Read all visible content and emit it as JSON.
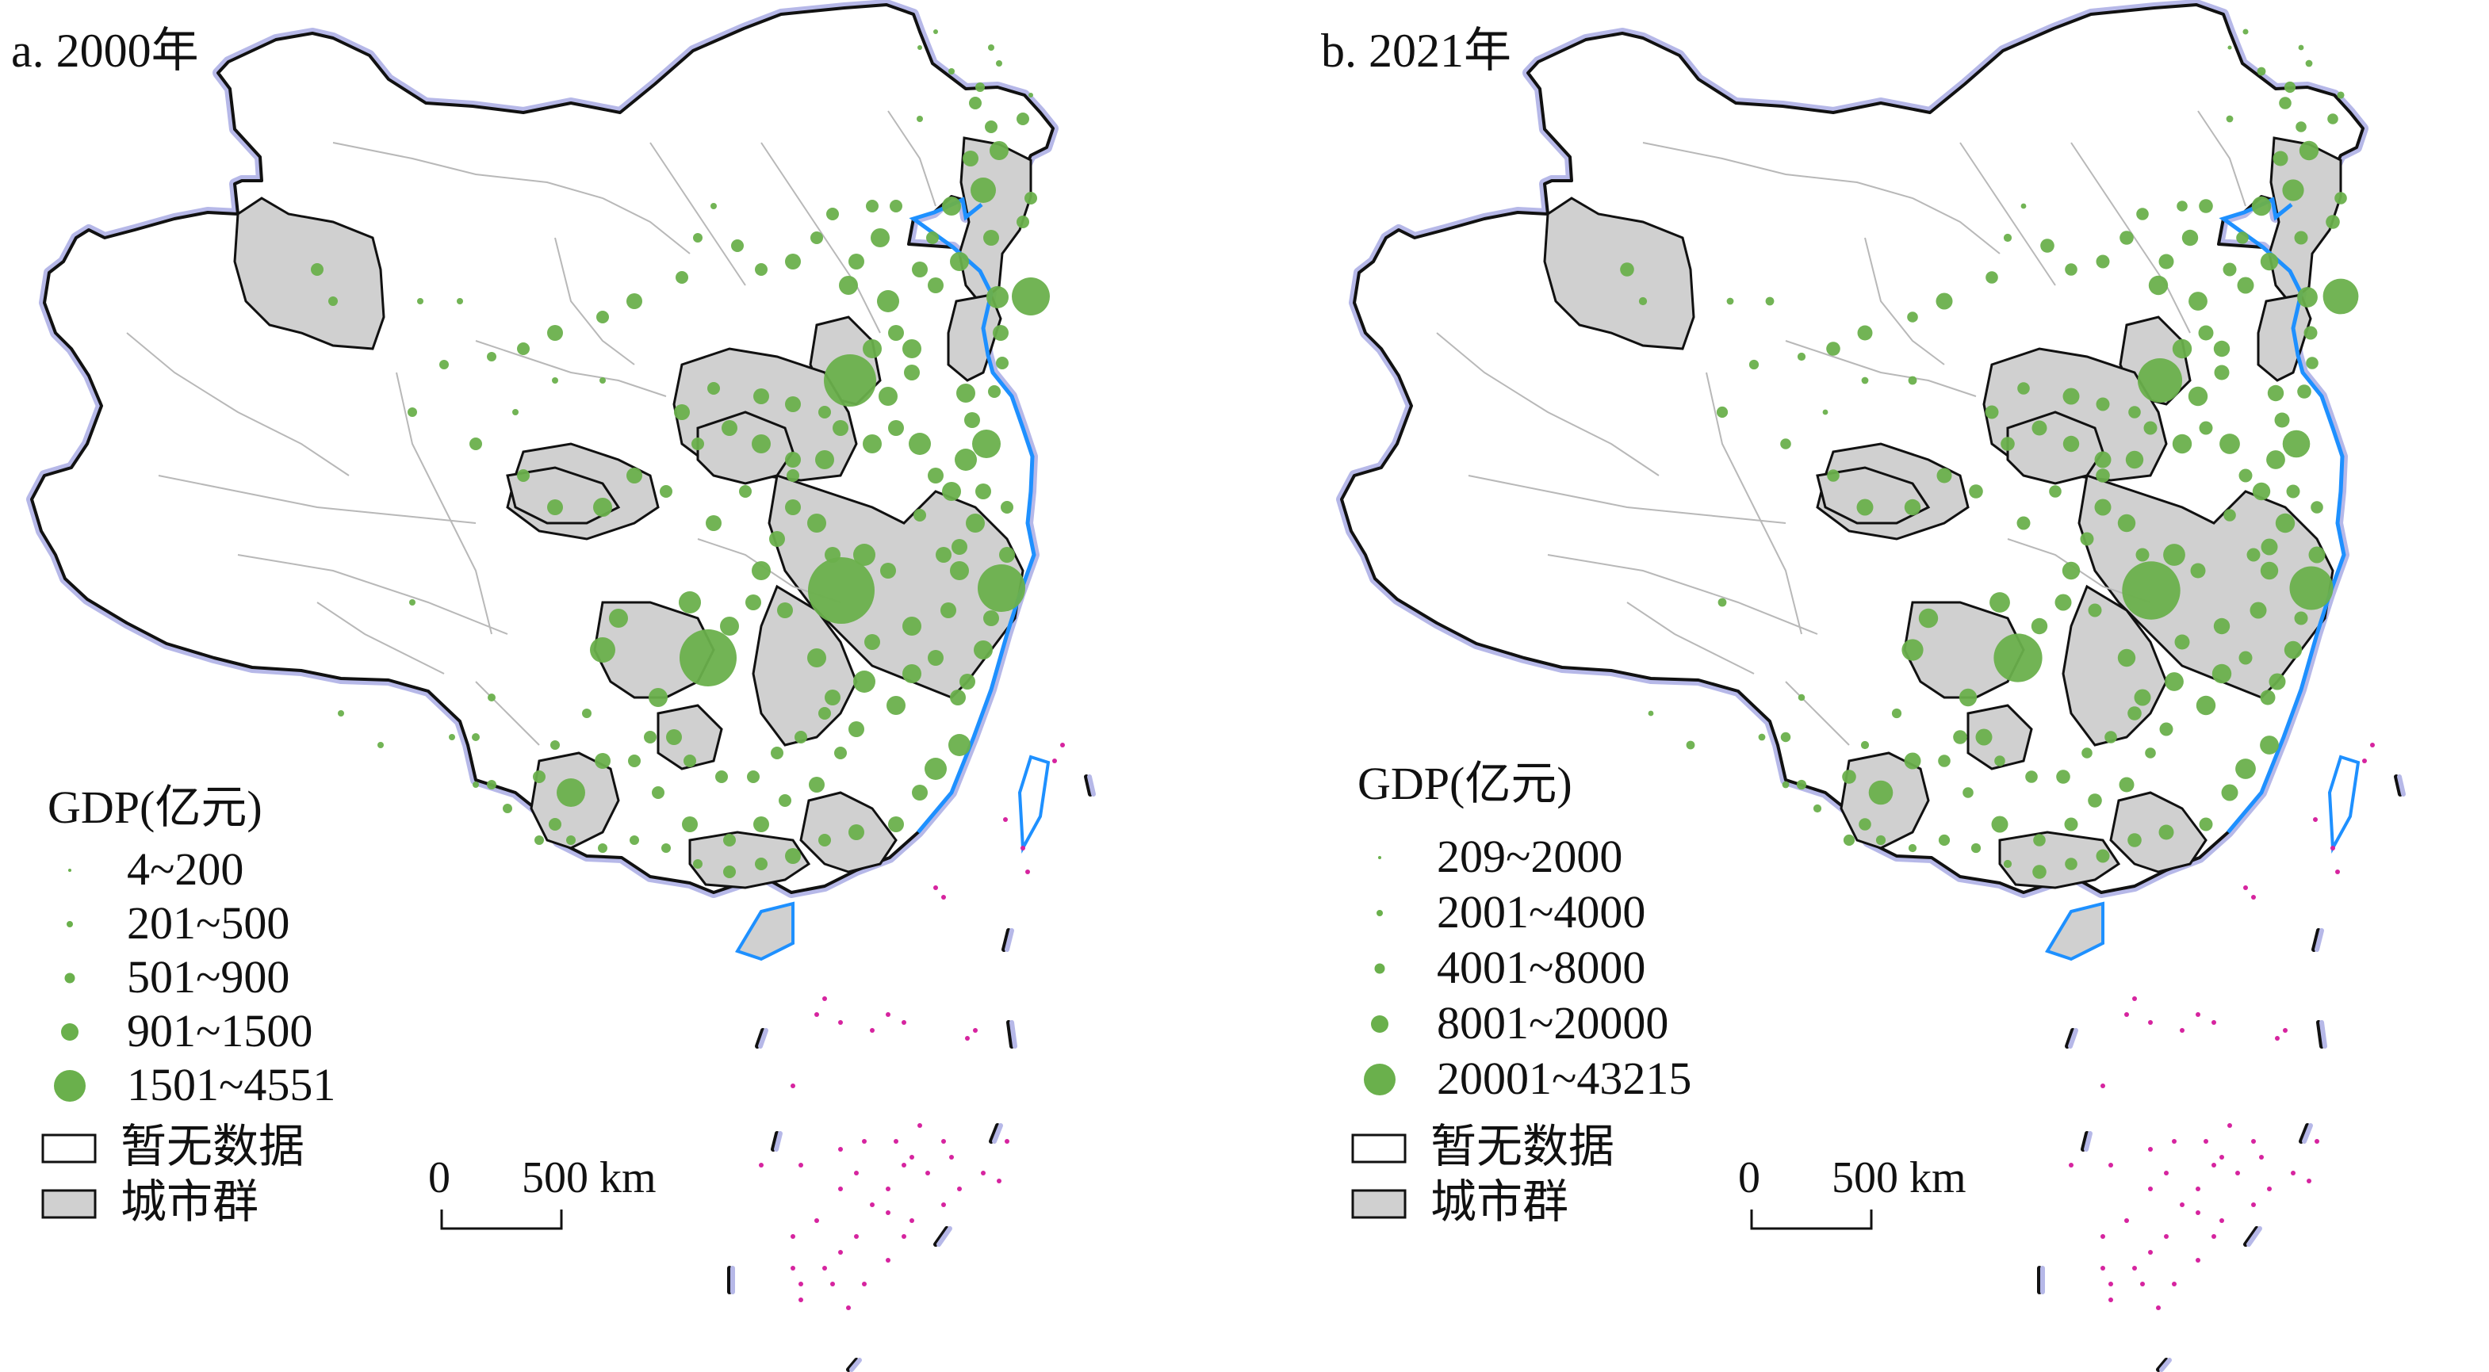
{
  "panels": [
    {
      "title": "a. 2000年",
      "legend": {
        "title": "GDP(亿元)",
        "classes": [
          {
            "label": "4~200"
          },
          {
            "label": "201~500"
          },
          {
            "label": "501~900"
          },
          {
            "label": "901~1500"
          },
          {
            "label": "1501~4551"
          }
        ],
        "no_data_label": "暂无数据",
        "cluster_label": "城市群"
      },
      "scale": {
        "zero": "0",
        "distance": "500 km"
      }
    },
    {
      "title": "b. 2021年",
      "legend": {
        "title": "GDP(亿元)",
        "classes": [
          {
            "label": "209~2000"
          },
          {
            "label": "2001~4000"
          },
          {
            "label": "4001~8000"
          },
          {
            "label": "8001~20000"
          },
          {
            "label": "20001~43215"
          }
        ],
        "no_data_label": "暂无数据",
        "cluster_label": "城市群"
      },
      "scale": {
        "zero": "0",
        "distance": "500 km"
      }
    }
  ],
  "colors": {
    "gdp_circle": "#6ab04c",
    "cluster_fill": "#d0d0d0",
    "no_data_fill": "#ffffff",
    "coastline": "#1e90ff",
    "border_glow": "#b6b8e8",
    "boundary": "#111111",
    "islands": "#d6249f"
  },
  "layers": [
    "country-outline",
    "city-boundaries",
    "urban-clusters",
    "gdp-circles",
    "islands",
    "nine-dash-line"
  ]
}
